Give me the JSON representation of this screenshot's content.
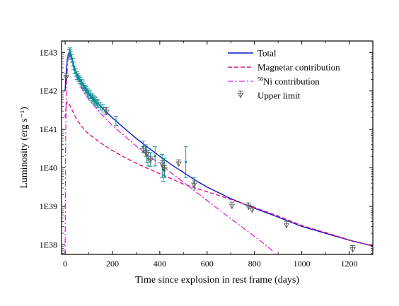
{
  "chart_data": {
    "type": "line",
    "xlabel": "Time since explosion in rest frame (days)",
    "ylabel": "Luminosity (erg s⁻¹)",
    "xlim": [
      -15,
      1300
    ],
    "ylim_log10": [
      37.75,
      43.3
    ],
    "y_scale": "log",
    "x_ticks": [
      0,
      200,
      400,
      600,
      800,
      1000,
      1200
    ],
    "y_ticks": [
      {
        "exp": 38,
        "label": "1E38"
      },
      {
        "exp": 39,
        "label": "1E39"
      },
      {
        "exp": 40,
        "label": "1E40"
      },
      {
        "exp": 41,
        "label": "1E41"
      },
      {
        "exp": 42,
        "label": "1E42"
      },
      {
        "exp": 43,
        "label": "1E43"
      }
    ],
    "legend": {
      "placement": "top-right",
      "entries": [
        {
          "key": "total",
          "label": "Total"
        },
        {
          "key": "magnetar",
          "label": "Magnetar contribution"
        },
        {
          "key": "ni",
          "label": "Ni contribution",
          "superscript": "56"
        },
        {
          "key": "upper",
          "label": "Upper limit"
        }
      ]
    },
    "series": [
      {
        "key": "total",
        "color": "#0a14c8",
        "style": "solid",
        "points": [
          [
            0,
            42.0
          ],
          [
            3,
            42.35
          ],
          [
            6,
            42.6
          ],
          [
            10,
            42.85
          ],
          [
            14,
            42.97
          ],
          [
            18,
            43.02
          ],
          [
            22,
            43.0
          ],
          [
            28,
            42.88
          ],
          [
            35,
            42.7
          ],
          [
            45,
            42.52
          ],
          [
            60,
            42.33
          ],
          [
            80,
            42.14
          ],
          [
            100,
            41.95
          ],
          [
            120,
            41.8
          ],
          [
            150,
            41.6
          ],
          [
            200,
            41.3
          ],
          [
            250,
            41.03
          ],
          [
            300,
            40.77
          ],
          [
            350,
            40.53
          ],
          [
            400,
            40.3
          ],
          [
            450,
            40.08
          ],
          [
            500,
            39.88
          ],
          [
            550,
            39.68
          ],
          [
            600,
            39.5
          ],
          [
            700,
            39.2
          ],
          [
            800,
            38.95
          ],
          [
            900,
            38.72
          ],
          [
            1000,
            38.48
          ],
          [
            1100,
            38.3
          ],
          [
            1200,
            38.12
          ],
          [
            1300,
            37.97
          ]
        ]
      },
      {
        "key": "magnetar",
        "color": "#e5157a",
        "style": "dashed",
        "points": [
          [
            0,
            41.3
          ],
          [
            4,
            41.6
          ],
          [
            8,
            41.72
          ],
          [
            12,
            41.7
          ],
          [
            18,
            41.65
          ],
          [
            30,
            41.5
          ],
          [
            50,
            41.25
          ],
          [
            80,
            41.0
          ],
          [
            100,
            40.88
          ],
          [
            150,
            40.65
          ],
          [
            200,
            40.45
          ],
          [
            250,
            40.28
          ],
          [
            300,
            40.12
          ],
          [
            400,
            39.85
          ],
          [
            500,
            39.58
          ],
          [
            600,
            39.38
          ],
          [
            700,
            39.18
          ],
          [
            800,
            38.97
          ],
          [
            900,
            38.75
          ],
          [
            1000,
            38.5
          ],
          [
            1100,
            38.32
          ],
          [
            1200,
            38.13
          ],
          [
            1300,
            37.97
          ]
        ]
      },
      {
        "key": "ni",
        "color": "#e81de8",
        "style": "dashdot",
        "points": [
          [
            0,
            37.75
          ],
          [
            2,
            40.5
          ],
          [
            4,
            41.5
          ],
          [
            7,
            42.2
          ],
          [
            10,
            42.7
          ],
          [
            14,
            42.95
          ],
          [
            18,
            43.0
          ],
          [
            22,
            42.97
          ],
          [
            28,
            42.83
          ],
          [
            35,
            42.62
          ],
          [
            45,
            42.43
          ],
          [
            60,
            42.2
          ],
          [
            80,
            41.97
          ],
          [
            100,
            41.78
          ],
          [
            150,
            41.42
          ],
          [
            200,
            41.1
          ],
          [
            300,
            40.57
          ],
          [
            400,
            40.1
          ],
          [
            500,
            39.63
          ],
          [
            600,
            39.15
          ],
          [
            700,
            38.68
          ],
          [
            800,
            38.22
          ],
          [
            850,
            37.98
          ],
          [
            880,
            37.82
          ]
        ]
      }
    ],
    "observations": {
      "color": "#128d94",
      "points": [
        [
          18,
          42.95,
          0.12
        ],
        [
          20,
          43.0,
          0.12
        ],
        [
          22,
          42.98,
          0.1
        ],
        [
          25,
          42.92,
          0.1
        ],
        [
          28,
          42.85,
          0.1
        ],
        [
          32,
          42.75,
          0.1
        ],
        [
          36,
          42.65,
          0.1
        ],
        [
          40,
          42.55,
          0.1
        ],
        [
          45,
          42.48,
          0.1
        ],
        [
          50,
          42.4,
          0.1
        ],
        [
          55,
          42.35,
          0.1
        ],
        [
          60,
          42.3,
          0.1
        ],
        [
          65,
          42.26,
          0.1
        ],
        [
          70,
          42.2,
          0.1
        ],
        [
          75,
          42.16,
          0.1
        ],
        [
          80,
          42.1,
          0.1
        ],
        [
          85,
          42.05,
          0.1
        ],
        [
          90,
          42.02,
          0.1
        ],
        [
          95,
          41.97,
          0.1
        ],
        [
          100,
          41.93,
          0.1
        ],
        [
          105,
          41.9,
          0.1
        ],
        [
          110,
          41.85,
          0.1
        ],
        [
          115,
          41.82,
          0.1
        ],
        [
          120,
          41.78,
          0.1
        ],
        [
          125,
          41.75,
          0.1
        ],
        [
          130,
          41.72,
          0.1
        ],
        [
          135,
          41.68,
          0.1
        ],
        [
          140,
          41.66,
          0.1
        ],
        [
          150,
          41.6,
          0.1
        ],
        [
          160,
          41.55,
          0.1
        ],
        [
          170,
          41.48,
          0.1
        ],
        [
          215,
          41.22,
          0.12
        ],
        [
          330,
          40.55,
          0.15
        ],
        [
          340,
          40.45,
          0.15
        ],
        [
          345,
          40.33,
          0.2
        ],
        [
          350,
          40.25,
          0.2
        ],
        [
          360,
          40.22,
          0.18
        ],
        [
          380,
          40.3,
          0.25
        ],
        [
          410,
          40.05,
          0.3
        ],
        [
          415,
          39.95,
          0.3
        ],
        [
          420,
          40.0,
          0.25
        ],
        [
          510,
          40.15,
          0.4
        ],
        [
          545,
          39.6,
          0.15
        ]
      ]
    },
    "upper_limits": {
      "color": "#5a5a5a",
      "points": [
        [
          5,
          42.35
        ],
        [
          175,
          41.45
        ],
        [
          330,
          40.45
        ],
        [
          345,
          40.35
        ],
        [
          360,
          40.18
        ],
        [
          410,
          40.08
        ],
        [
          420,
          39.95
        ],
        [
          480,
          40.1
        ],
        [
          545,
          39.55
        ],
        [
          705,
          39.0
        ],
        [
          775,
          38.98
        ],
        [
          790,
          38.9
        ],
        [
          935,
          38.5
        ],
        [
          1215,
          37.87
        ]
      ]
    }
  }
}
